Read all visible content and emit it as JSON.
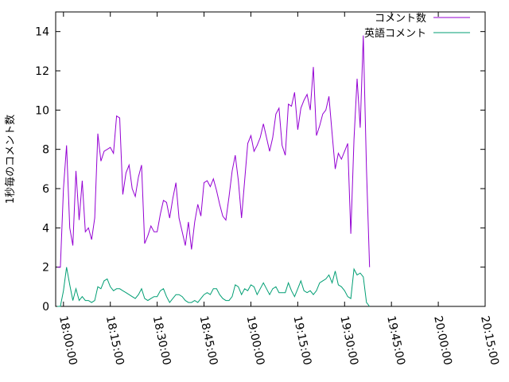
{
  "chart_data": {
    "type": "line",
    "title": "",
    "ylabel": "1秒毎のコメント数",
    "xlabel": "",
    "x_unit": "minutes since 18:00:00",
    "xlim": [
      -2.5,
      135
    ],
    "ylim": [
      0,
      15
    ],
    "yticks": [
      0,
      2,
      4,
      6,
      8,
      10,
      12,
      14
    ],
    "xtick_values": [
      0,
      15,
      30,
      45,
      60,
      75,
      90,
      105,
      120,
      135
    ],
    "xtick_labels": [
      "18:00:00",
      "18:15:00",
      "18:30:00",
      "18:45:00",
      "19:00:00",
      "19:15:00",
      "19:30:00",
      "19:45:00",
      "20:00:00",
      "20:15:00"
    ],
    "legend_position": "top-right",
    "grid": false,
    "series": [
      {
        "name": "コメント数",
        "color": "#9400d3",
        "points": [
          [
            -2,
            2.0
          ],
          [
            -1,
            2.0
          ],
          [
            0,
            6.0
          ],
          [
            1,
            8.2
          ],
          [
            2,
            4.0
          ],
          [
            3,
            3.1
          ],
          [
            4,
            6.9
          ],
          [
            5,
            4.4
          ],
          [
            6,
            6.4
          ],
          [
            7,
            3.8
          ],
          [
            8,
            4.0
          ],
          [
            9,
            3.4
          ],
          [
            10,
            4.5
          ],
          [
            11,
            8.8
          ],
          [
            12,
            7.4
          ],
          [
            13,
            7.9
          ],
          [
            14,
            8.0
          ],
          [
            15,
            8.1
          ],
          [
            16,
            7.8
          ],
          [
            17,
            9.7
          ],
          [
            18,
            9.6
          ],
          [
            19,
            5.7
          ],
          [
            20,
            6.8
          ],
          [
            21,
            7.2
          ],
          [
            22,
            6.0
          ],
          [
            23,
            5.6
          ],
          [
            24,
            6.6
          ],
          [
            25,
            7.2
          ],
          [
            26,
            3.2
          ],
          [
            27,
            3.6
          ],
          [
            28,
            4.1
          ],
          [
            29,
            3.8
          ],
          [
            30,
            3.8
          ],
          [
            31,
            4.7
          ],
          [
            32,
            5.4
          ],
          [
            33,
            5.3
          ],
          [
            34,
            4.5
          ],
          [
            35,
            5.5
          ],
          [
            36,
            6.3
          ],
          [
            37,
            4.5
          ],
          [
            38,
            3.8
          ],
          [
            39,
            3.1
          ],
          [
            40,
            4.3
          ],
          [
            41,
            2.9
          ],
          [
            42,
            4.3
          ],
          [
            43,
            5.2
          ],
          [
            44,
            4.6
          ],
          [
            45,
            6.3
          ],
          [
            46,
            6.4
          ],
          [
            47,
            6.1
          ],
          [
            48,
            6.5
          ],
          [
            49,
            5.9
          ],
          [
            50,
            5.2
          ],
          [
            51,
            4.6
          ],
          [
            52,
            4.4
          ],
          [
            53,
            5.6
          ],
          [
            54,
            6.9
          ],
          [
            55,
            7.7
          ],
          [
            56,
            6.4
          ],
          [
            57,
            4.5
          ],
          [
            58,
            6.4
          ],
          [
            59,
            8.3
          ],
          [
            60,
            8.7
          ],
          [
            61,
            7.9
          ],
          [
            62,
            8.2
          ],
          [
            63,
            8.6
          ],
          [
            64,
            9.3
          ],
          [
            65,
            8.6
          ],
          [
            66,
            7.9
          ],
          [
            67,
            8.6
          ],
          [
            68,
            9.8
          ],
          [
            69,
            10.1
          ],
          [
            70,
            8.2
          ],
          [
            71,
            7.7
          ],
          [
            72,
            10.3
          ],
          [
            73,
            10.2
          ],
          [
            74,
            10.9
          ],
          [
            75,
            9.0
          ],
          [
            76,
            10.1
          ],
          [
            77,
            10.5
          ],
          [
            78,
            10.8
          ],
          [
            79,
            10.0
          ],
          [
            80,
            12.2
          ],
          [
            81,
            8.7
          ],
          [
            82,
            9.2
          ],
          [
            83,
            9.8
          ],
          [
            84,
            10.0
          ],
          [
            85,
            10.7
          ],
          [
            86,
            8.8
          ],
          [
            87,
            7.0
          ],
          [
            88,
            7.8
          ],
          [
            89,
            7.5
          ],
          [
            90,
            7.9
          ],
          [
            91,
            8.3
          ],
          [
            92,
            3.7
          ],
          [
            93,
            8.5
          ],
          [
            94,
            11.6
          ],
          [
            95,
            9.1
          ],
          [
            96,
            13.8
          ],
          [
            97,
            7.0
          ],
          [
            98,
            2.0
          ]
        ]
      },
      {
        "name": "英語コメント",
        "color": "#009e73",
        "points": [
          [
            -2,
            0.0
          ],
          [
            -1,
            0.0
          ],
          [
            0,
            0.8
          ],
          [
            1,
            2.0
          ],
          [
            2,
            1.1
          ],
          [
            3,
            0.3
          ],
          [
            4,
            0.9
          ],
          [
            5,
            0.3
          ],
          [
            6,
            0.5
          ],
          [
            7,
            0.3
          ],
          [
            8,
            0.3
          ],
          [
            9,
            0.2
          ],
          [
            10,
            0.3
          ],
          [
            11,
            1.0
          ],
          [
            12,
            0.9
          ],
          [
            13,
            1.3
          ],
          [
            14,
            1.4
          ],
          [
            15,
            1.0
          ],
          [
            16,
            0.8
          ],
          [
            17,
            0.9
          ],
          [
            18,
            0.9
          ],
          [
            19,
            0.8
          ],
          [
            20,
            0.7
          ],
          [
            21,
            0.6
          ],
          [
            22,
            0.5
          ],
          [
            23,
            0.4
          ],
          [
            24,
            0.6
          ],
          [
            25,
            0.9
          ],
          [
            26,
            0.4
          ],
          [
            27,
            0.3
          ],
          [
            28,
            0.4
          ],
          [
            29,
            0.5
          ],
          [
            30,
            0.5
          ],
          [
            31,
            0.8
          ],
          [
            32,
            0.9
          ],
          [
            33,
            0.5
          ],
          [
            34,
            0.2
          ],
          [
            35,
            0.4
          ],
          [
            36,
            0.6
          ],
          [
            37,
            0.6
          ],
          [
            38,
            0.5
          ],
          [
            39,
            0.3
          ],
          [
            40,
            0.2
          ],
          [
            41,
            0.2
          ],
          [
            42,
            0.3
          ],
          [
            43,
            0.2
          ],
          [
            44,
            0.4
          ],
          [
            45,
            0.6
          ],
          [
            46,
            0.7
          ],
          [
            47,
            0.6
          ],
          [
            48,
            0.9
          ],
          [
            49,
            0.9
          ],
          [
            50,
            0.6
          ],
          [
            51,
            0.4
          ],
          [
            52,
            0.3
          ],
          [
            53,
            0.3
          ],
          [
            54,
            0.5
          ],
          [
            55,
            1.1
          ],
          [
            56,
            1.0
          ],
          [
            57,
            0.6
          ],
          [
            58,
            0.9
          ],
          [
            59,
            0.8
          ],
          [
            60,
            1.1
          ],
          [
            61,
            1.0
          ],
          [
            62,
            0.6
          ],
          [
            63,
            0.9
          ],
          [
            64,
            1.2
          ],
          [
            65,
            0.9
          ],
          [
            66,
            0.6
          ],
          [
            67,
            0.9
          ],
          [
            68,
            1.0
          ],
          [
            69,
            0.7
          ],
          [
            70,
            0.7
          ],
          [
            71,
            0.7
          ],
          [
            72,
            1.2
          ],
          [
            73,
            0.8
          ],
          [
            74,
            0.5
          ],
          [
            75,
            0.9
          ],
          [
            76,
            1.3
          ],
          [
            77,
            0.8
          ],
          [
            78,
            0.7
          ],
          [
            79,
            0.8
          ],
          [
            80,
            0.6
          ],
          [
            81,
            0.8
          ],
          [
            82,
            1.2
          ],
          [
            83,
            1.3
          ],
          [
            84,
            1.4
          ],
          [
            85,
            1.6
          ],
          [
            86,
            1.2
          ],
          [
            87,
            1.8
          ],
          [
            88,
            1.1
          ],
          [
            89,
            1.0
          ],
          [
            90,
            0.8
          ],
          [
            91,
            0.5
          ],
          [
            92,
            0.4
          ],
          [
            93,
            1.9
          ],
          [
            94,
            1.6
          ],
          [
            95,
            1.7
          ],
          [
            96,
            1.5
          ],
          [
            97,
            0.2
          ],
          [
            98,
            0.0
          ]
        ]
      }
    ]
  }
}
